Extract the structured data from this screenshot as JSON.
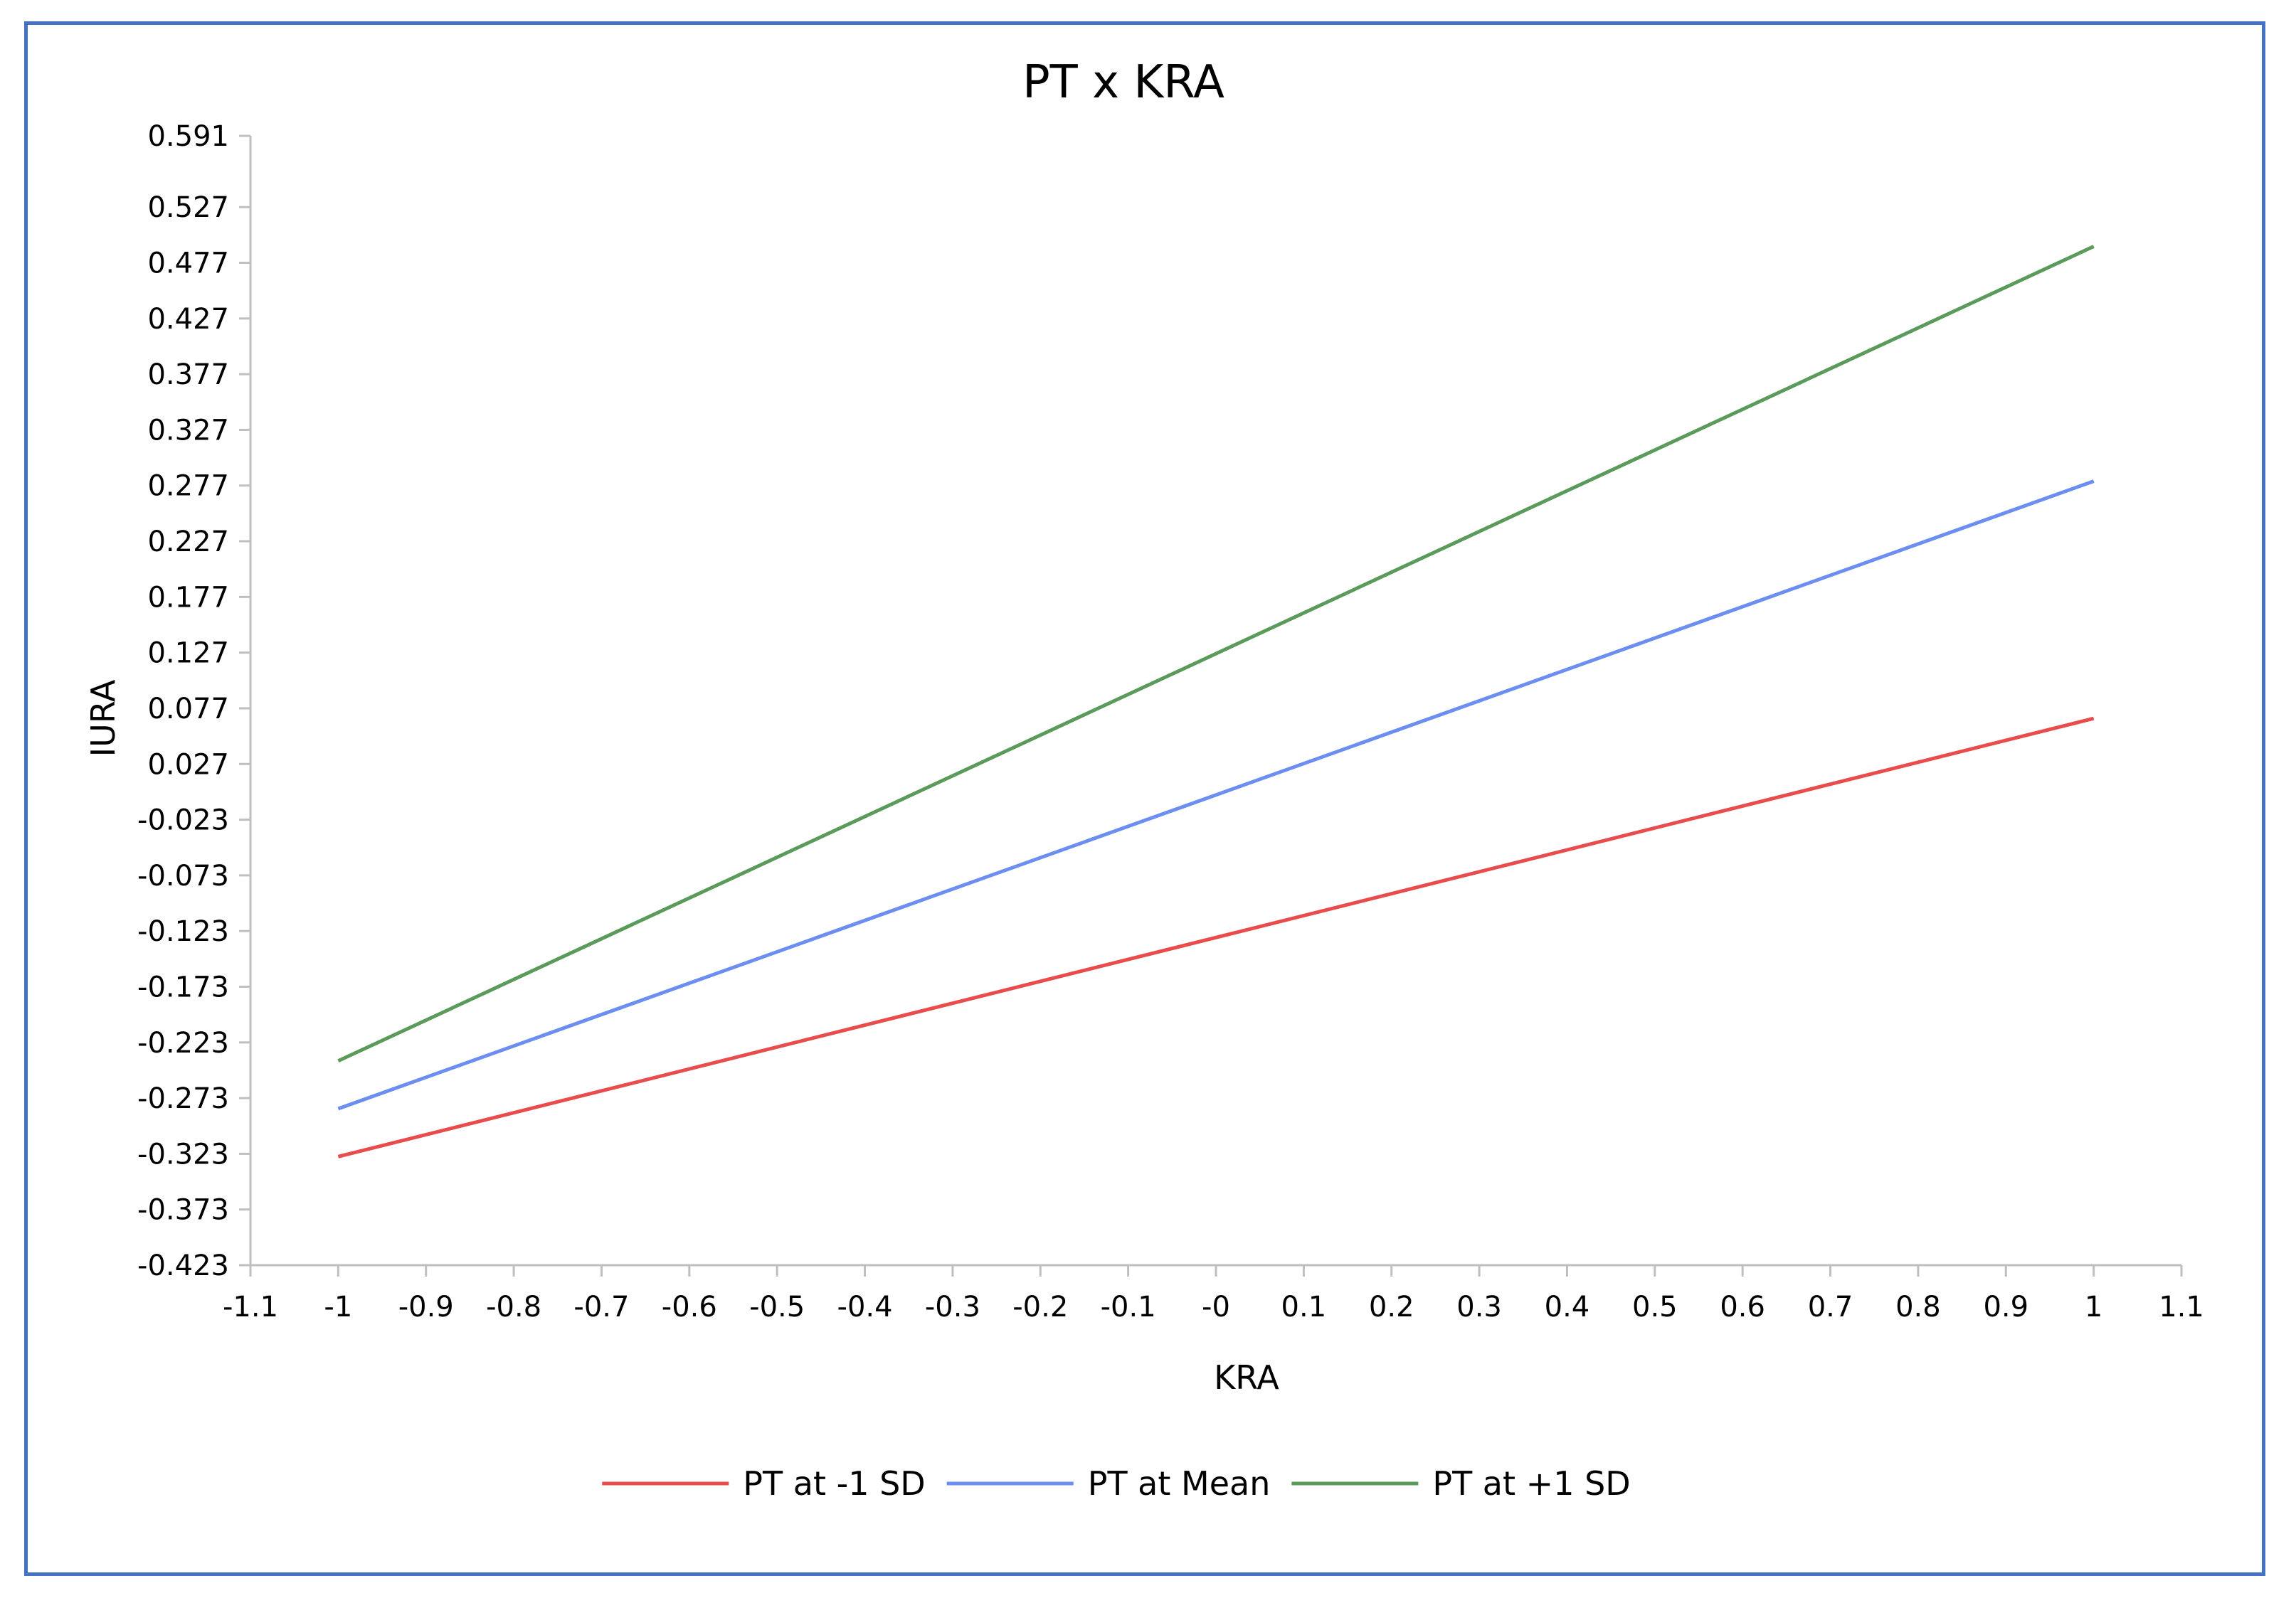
{
  "chart_data": {
    "type": "line",
    "title": "PT x KRA",
    "xlabel": "KRA",
    "ylabel": "IURA",
    "xlim": [
      -1.1,
      1.1
    ],
    "ylim": [
      -0.423,
      0.591
    ],
    "x_ticks": [
      "-1.1",
      "-1",
      "-0.9",
      "-0.8",
      "-0.7",
      "-0.6",
      "-0.5",
      "-0.4",
      "-0.3",
      "-0.2",
      "-0.1",
      "-0",
      "0.1",
      "0.2",
      "0.3",
      "0.4",
      "0.5",
      "0.6",
      "0.7",
      "0.8",
      "0.9",
      "1",
      "1.1"
    ],
    "y_ticks": [
      "0.591",
      "0.527",
      "0.477",
      "0.427",
      "0.377",
      "0.327",
      "0.277",
      "0.227",
      "0.177",
      "0.127",
      "0.077",
      "0.027",
      "-0.023",
      "-0.073",
      "-0.123",
      "-0.173",
      "-0.223",
      "-0.273",
      "-0.323",
      "-0.373",
      "-0.423"
    ],
    "grid": false,
    "legend_position": "bottom",
    "x": [
      -1,
      1
    ],
    "series": [
      {
        "name": "PT at -1 SD",
        "color": "#e84c4c",
        "values": [
          -0.3255,
          0.0679
        ]
      },
      {
        "name": "PT at Mean",
        "color": "#6b8ef0",
        "values": [
          -0.2825,
          0.2809
        ]
      },
      {
        "name": "PT at +1 SD",
        "color": "#5a9a5a",
        "values": [
          -0.2396,
          0.4917
        ]
      }
    ]
  }
}
